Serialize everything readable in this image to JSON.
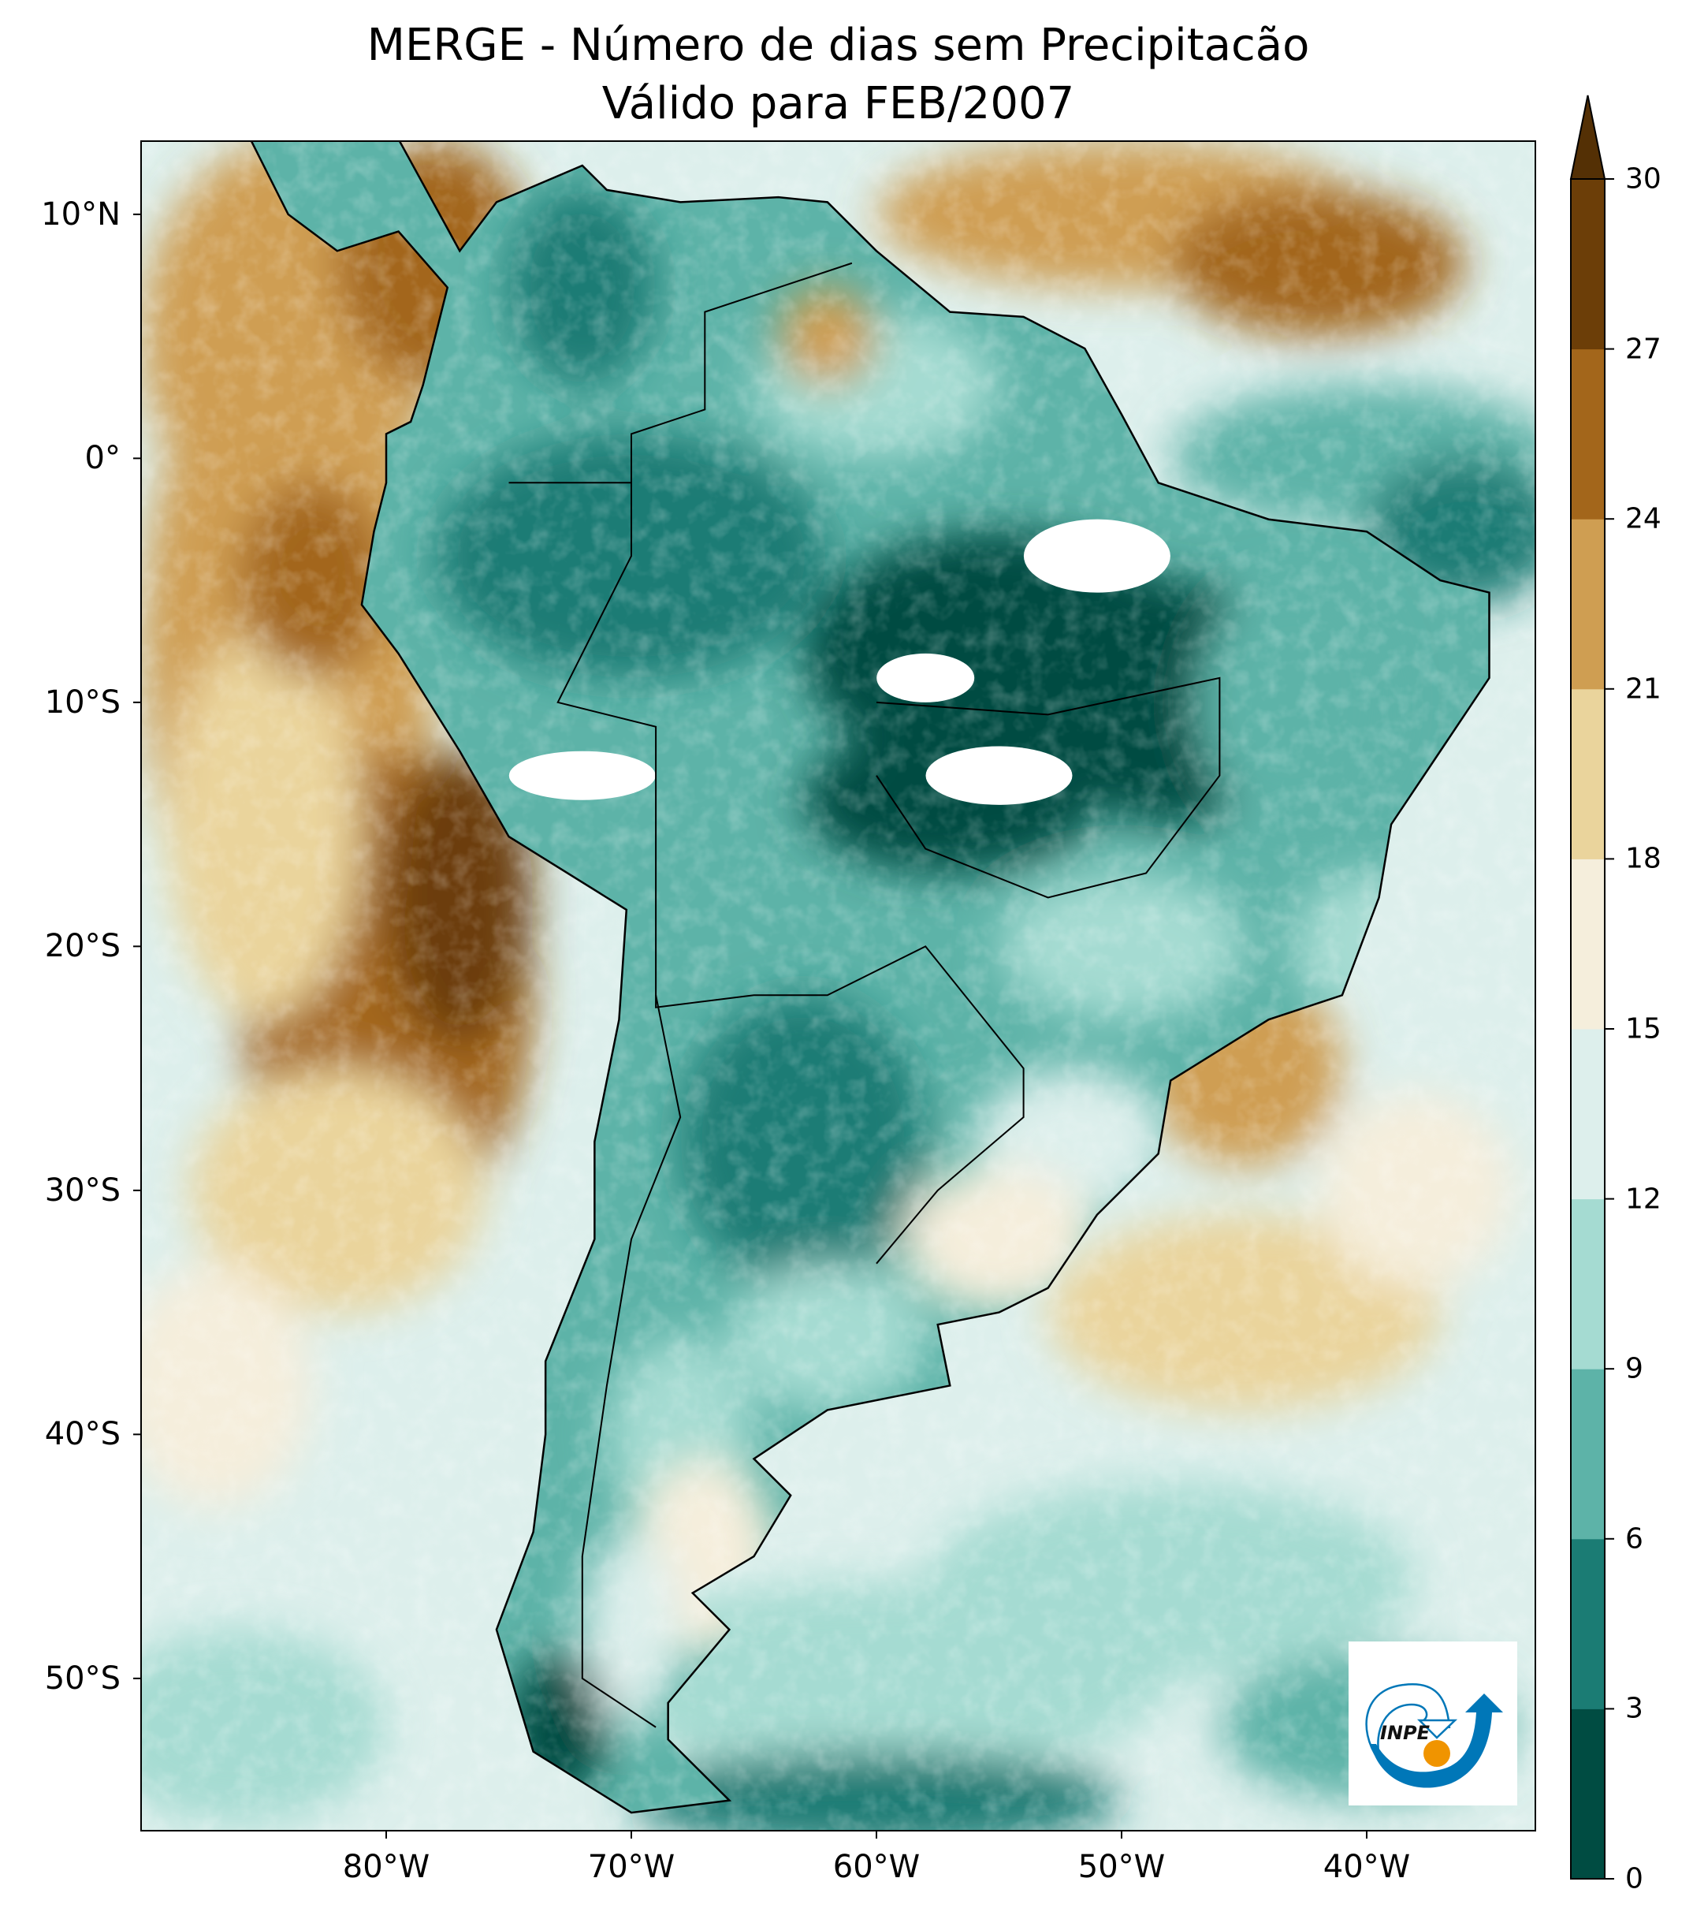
{
  "title": {
    "line1": "MERGE - Número de dias sem Precipitacão",
    "line2": "Válido para FEB/2007"
  },
  "axes": {
    "lat_ticks": [
      {
        "value": 10,
        "label": "10°N"
      },
      {
        "value": 0,
        "label": "0°"
      },
      {
        "value": -10,
        "label": "10°S"
      },
      {
        "value": -20,
        "label": "20°S"
      },
      {
        "value": -30,
        "label": "30°S"
      },
      {
        "value": -40,
        "label": "40°S"
      },
      {
        "value": -50,
        "label": "50°S"
      }
    ],
    "lon_ticks": [
      {
        "value": -80,
        "label": "80°W"
      },
      {
        "value": -70,
        "label": "70°W"
      },
      {
        "value": -60,
        "label": "60°W"
      },
      {
        "value": -50,
        "label": "50°W"
      },
      {
        "value": -40,
        "label": "40°W"
      }
    ],
    "lon_range": [
      -90,
      -33
    ],
    "lat_range": [
      -56,
      13
    ]
  },
  "colorbar": {
    "levels": [
      "0",
      "3",
      "6",
      "9",
      "12",
      "15",
      "18",
      "21",
      "24",
      "27",
      "30"
    ],
    "colors": [
      "#004c42",
      "#1b7c74",
      "#5db3a8",
      "#a5dbd2",
      "#ddefec",
      "#f5eedc",
      "#ead49c",
      "#cf9e52",
      "#a3661b",
      "#6c3e08"
    ],
    "extend_color": "#543005",
    "extend": "max"
  },
  "logo": {
    "text": "INPE",
    "blue": "#0077b8",
    "orange": "#f09400"
  }
}
